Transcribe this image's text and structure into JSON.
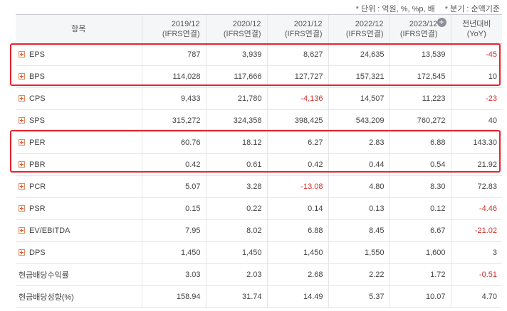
{
  "notes": {
    "unit": "* 단위 : 억원, %, %p, 배",
    "basis": "* 분기 : 순액기준"
  },
  "header": {
    "item": "항목",
    "cols": [
      {
        "period": "2019/12",
        "basis": "(IFRS연결)"
      },
      {
        "period": "2020/12",
        "basis": "(IFRS연결)"
      },
      {
        "period": "2021/12",
        "basis": "(IFRS연결)"
      },
      {
        "period": "2022/12",
        "basis": "(IFRS연결)"
      },
      {
        "period": "2023/12",
        "basis": "(IFRS연결)"
      }
    ],
    "yoy_title": "전년대비",
    "yoy_sub": "(YoY)"
  },
  "colors": {
    "highlight": "#e8232b",
    "negative": "#d0312d"
  },
  "rows": [
    {
      "label": "EPS",
      "expand": true,
      "values": [
        "787",
        "3,939",
        "8,627",
        "24,635",
        "13,539"
      ],
      "yoy": "-45"
    },
    {
      "label": "BPS",
      "expand": true,
      "values": [
        "114,028",
        "117,666",
        "127,727",
        "157,321",
        "172,545"
      ],
      "yoy": "10"
    },
    {
      "label": "CPS",
      "expand": true,
      "values": [
        "9,433",
        "21,780",
        "-4,136",
        "14,507",
        "11,223"
      ],
      "yoy": "-23"
    },
    {
      "label": "SPS",
      "expand": true,
      "values": [
        "315,272",
        "324,358",
        "398,425",
        "543,209",
        "760,272"
      ],
      "yoy": "40"
    },
    {
      "label": "PER",
      "expand": true,
      "values": [
        "60.76",
        "18.12",
        "6.27",
        "2.83",
        "6.88"
      ],
      "yoy": "143.30"
    },
    {
      "label": "PBR",
      "expand": true,
      "values": [
        "0.42",
        "0.61",
        "0.42",
        "0.44",
        "0.54"
      ],
      "yoy": "21.92"
    },
    {
      "label": "PCR",
      "expand": true,
      "values": [
        "5.07",
        "3.28",
        "-13.08",
        "4.80",
        "8.30"
      ],
      "yoy": "72.83"
    },
    {
      "label": "PSR",
      "expand": true,
      "values": [
        "0.15",
        "0.22",
        "0.14",
        "0.13",
        "0.12"
      ],
      "yoy": "-4.46"
    },
    {
      "label": "EV/EBITDA",
      "expand": true,
      "values": [
        "7.95",
        "8.02",
        "6.88",
        "8.45",
        "6.67"
      ],
      "yoy": "-21.02"
    },
    {
      "label": "DPS",
      "expand": true,
      "values": [
        "1,450",
        "1,450",
        "1,450",
        "1,550",
        "1,600"
      ],
      "yoy": "3"
    },
    {
      "label": "현금배당수익률",
      "expand": false,
      "values": [
        "3.03",
        "2.03",
        "2.68",
        "2.22",
        "1.72"
      ],
      "yoy": "-0.51"
    },
    {
      "label": "현금배당성향(%)",
      "expand": false,
      "values": [
        "158.94",
        "31.74",
        "14.49",
        "5.37",
        "10.07"
      ],
      "yoy": "4.70"
    }
  ]
}
